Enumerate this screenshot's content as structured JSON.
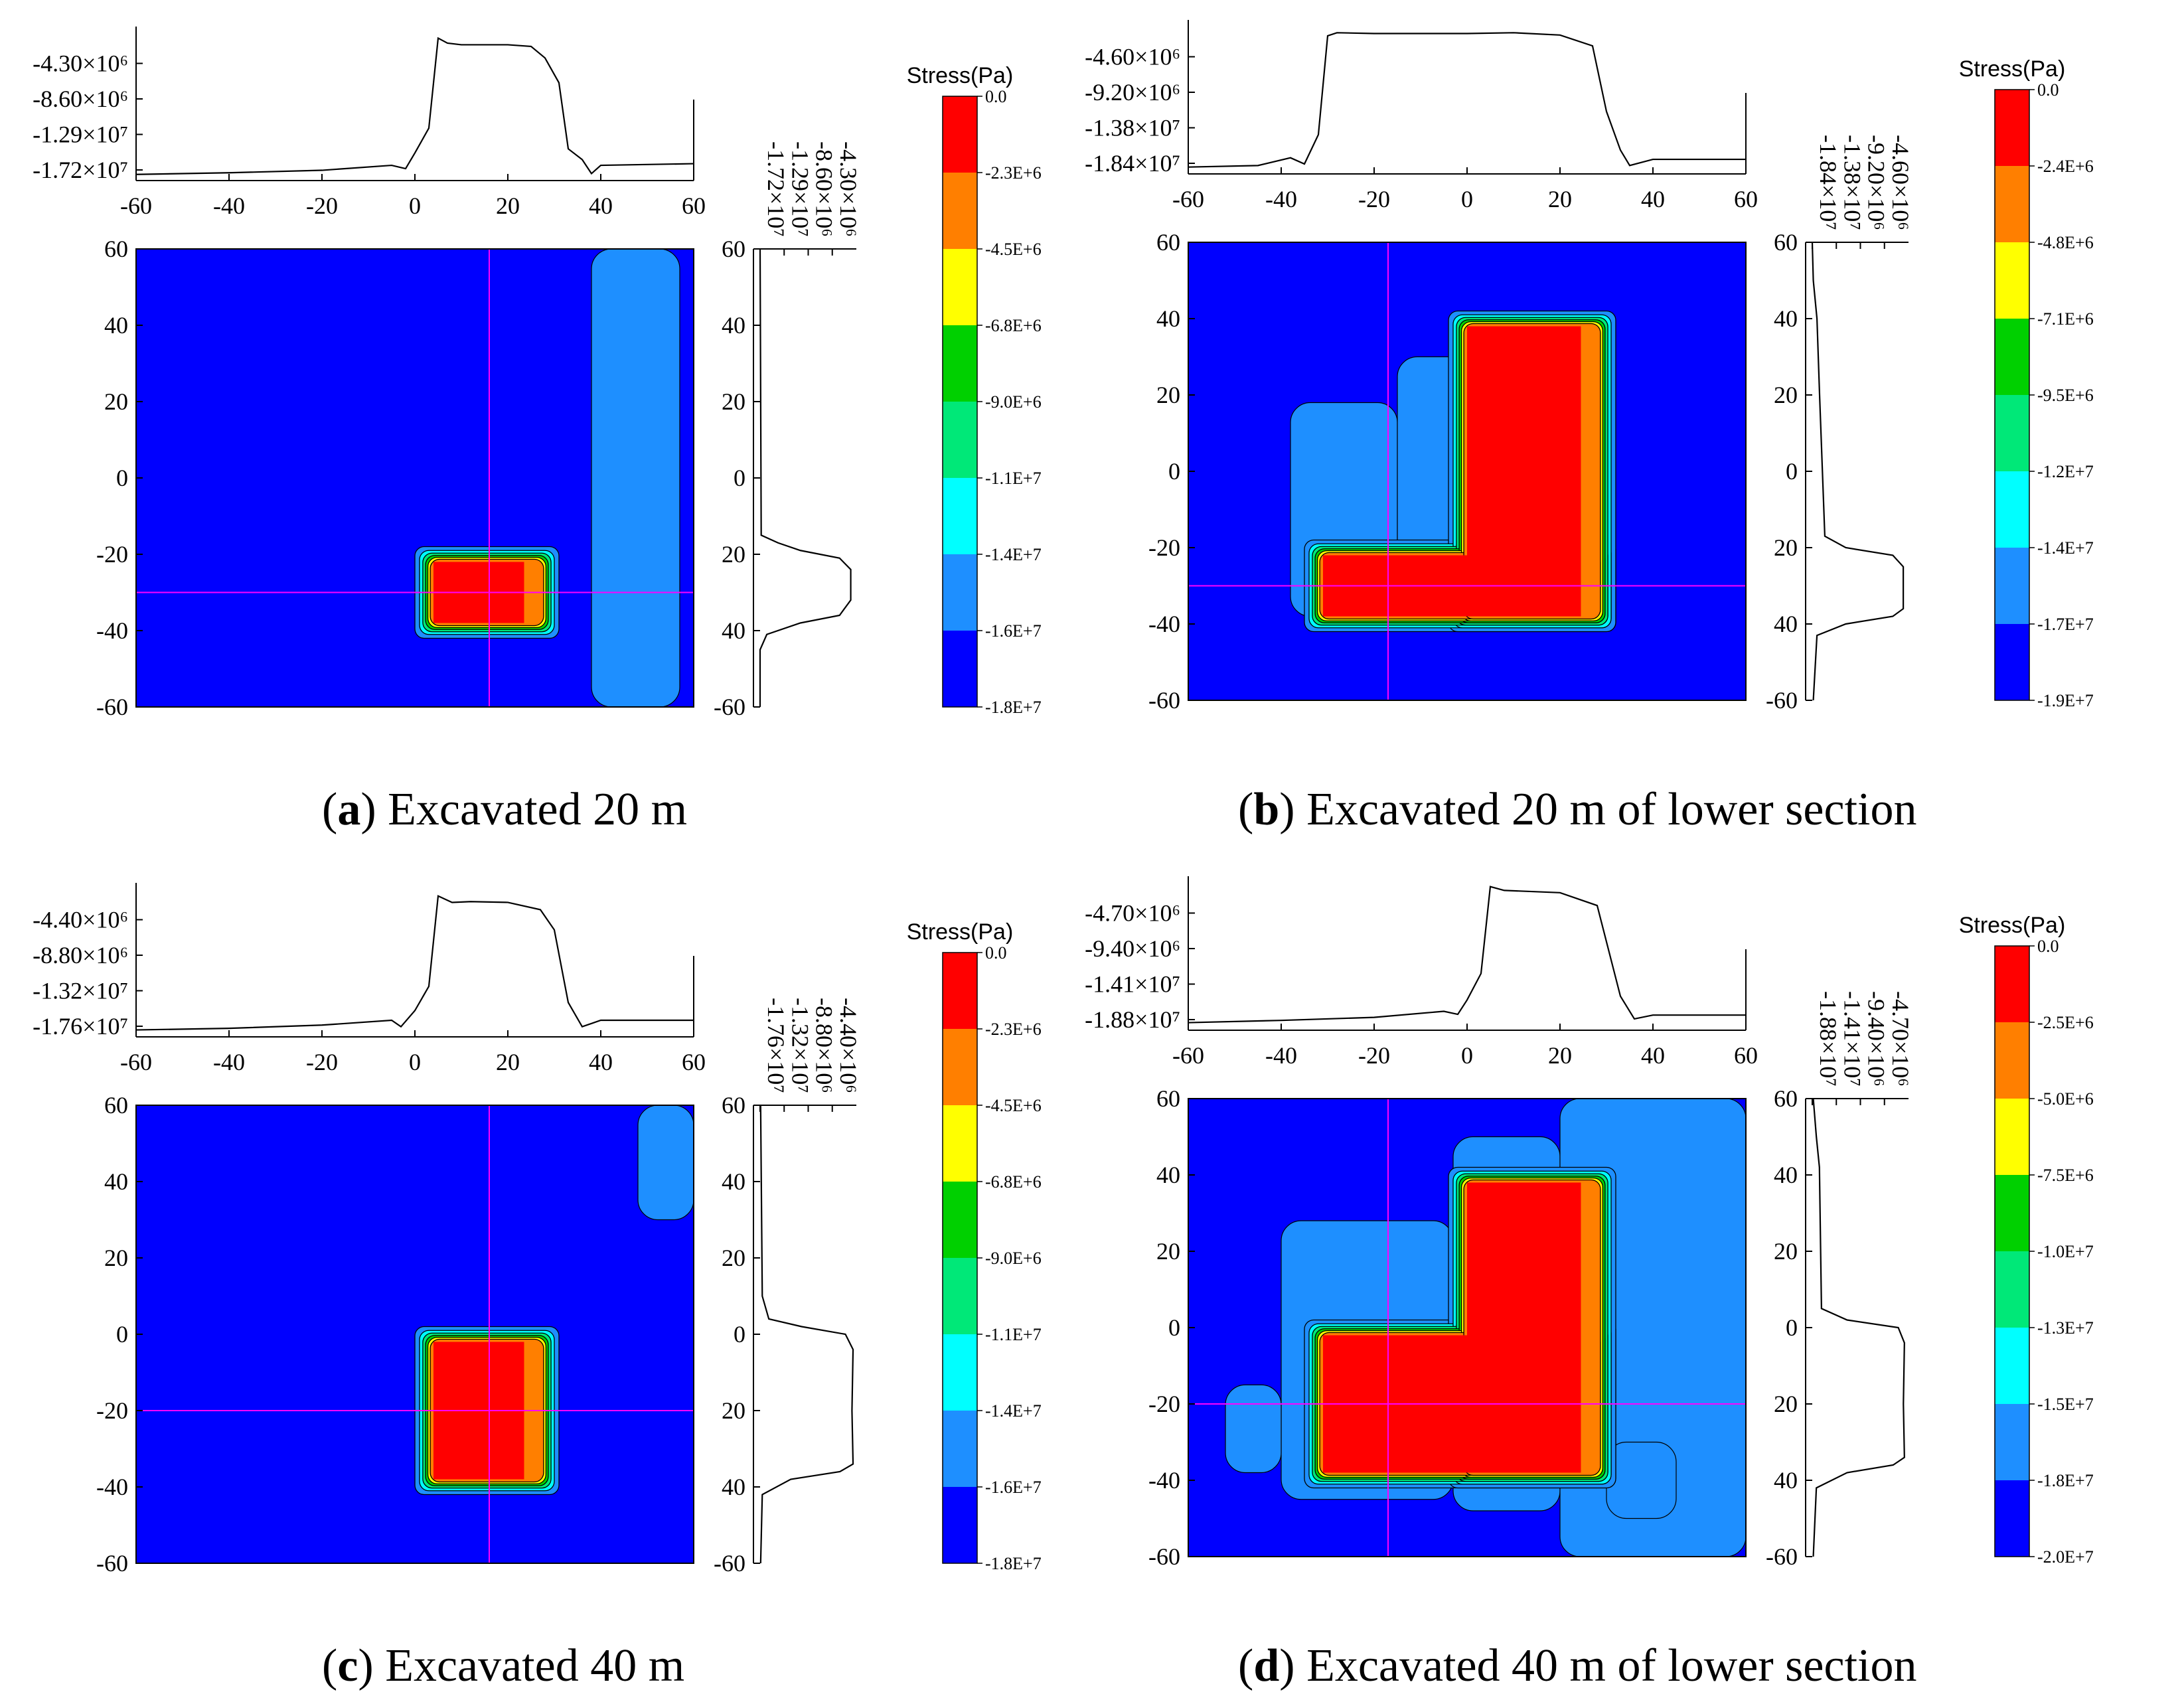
{
  "colors": {
    "bands": [
      "#ff0000",
      "#ff7f00",
      "#ffff00",
      "#00d000",
      "#00e878",
      "#00ffff",
      "#1e8fff",
      "#0000ff"
    ],
    "profile_line": "#000000",
    "crosshair": "#ff00ff"
  },
  "chart_data": [
    {
      "type": "contour",
      "panel_letter": "a",
      "caption": "Excavated 20 m",
      "colorbar_title": "Stress(Pa)",
      "colorbar_labels": [
        "0.0",
        "-2.3E+6",
        "-4.5E+6",
        "-6.8E+6",
        "-9.0E+6",
        "-1.1E+7",
        "-1.4E+7",
        "-1.6E+7",
        "-1.8E+7"
      ],
      "x_ticks": [
        "-60",
        "-40",
        "-20",
        "0",
        "20",
        "40",
        "60"
      ],
      "y_ticks": [
        "60",
        "40",
        "20",
        "0",
        "-20",
        "-40",
        "-60"
      ],
      "side_y_ticks": [
        "60",
        "40",
        "20",
        "0",
        "20",
        "40",
        "-60"
      ],
      "top_profile_ticks": [
        "-4.30×10⁶",
        "-8.60×10⁶",
        "-1.29×10⁷",
        "-1.72×10⁷"
      ],
      "side_profile_ticks": [
        "-1.72×10⁷",
        "-1.29×10⁷",
        "-8.60×10⁶",
        "-4.30×10⁶"
      ],
      "xlim": [
        -60,
        60
      ],
      "ylim": [
        -60,
        60
      ],
      "crosshair": {
        "x": 16,
        "y": -30
      },
      "excavation_rects": [
        [
          4,
          27,
          -38,
          -22
        ]
      ],
      "side_high_zones": [
        [
          38,
          57,
          -60,
          60
        ]
      ],
      "top_profile": [
        [
          -60,
          -17100000.0
        ],
        [
          -40,
          -16900000.0
        ],
        [
          -20,
          -16600000.0
        ],
        [
          -5,
          -16000000.0
        ],
        [
          -2,
          -16400000.0
        ],
        [
          0,
          -14500000.0
        ],
        [
          3,
          -11500000.0
        ],
        [
          5,
          -600000.0
        ],
        [
          7,
          -1200000.0
        ],
        [
          10,
          -1400000.0
        ],
        [
          20,
          -1400000.0
        ],
        [
          25,
          -1600000.0
        ],
        [
          28,
          -3000000.0
        ],
        [
          31,
          -6000000.0
        ],
        [
          33,
          -14000000.0
        ],
        [
          36,
          -15300000.0
        ],
        [
          38,
          -17000000.0
        ],
        [
          40,
          -16000000.0
        ],
        [
          60,
          -15800000.0
        ]
      ],
      "side_profile": [
        [
          60,
          -17200000.0
        ],
        [
          -15,
          -17000000.0
        ],
        [
          -17,
          -14000000.0
        ],
        [
          -19,
          -10000000.0
        ],
        [
          -21,
          -3000000.0
        ],
        [
          -24,
          -1000000.0
        ],
        [
          -32,
          -1000000.0
        ],
        [
          -36,
          -3000000.0
        ],
        [
          -38,
          -10000000.0
        ],
        [
          -41,
          -16000000.0
        ],
        [
          -45,
          -17200000.0
        ],
        [
          -60,
          -17200000.0
        ]
      ]
    },
    {
      "type": "contour",
      "panel_letter": "b",
      "caption": "Excavated 20 m of lower section",
      "colorbar_title": "Stress(Pa)",
      "colorbar_labels": [
        "0.0",
        "-2.4E+6",
        "-4.8E+6",
        "-7.1E+6",
        "-9.5E+6",
        "-1.2E+7",
        "-1.4E+7",
        "-1.7E+7",
        "-1.9E+7"
      ],
      "x_ticks": [
        "-60",
        "-40",
        "-20",
        "0",
        "20",
        "40",
        "60"
      ],
      "y_ticks": [
        "60",
        "40",
        "20",
        "0",
        "-20",
        "-40",
        "-60"
      ],
      "side_y_ticks": [
        "60",
        "40",
        "20",
        "0",
        "20",
        "40",
        "-60"
      ],
      "top_profile_ticks": [
        "-4.60×10⁶",
        "-9.20×10⁶",
        "-1.38×10⁷",
        "-1.84×10⁷"
      ],
      "side_profile_ticks": [
        "-1.84×10⁷",
        "-1.38×10⁷",
        "-9.20×10⁶",
        "-4.60×10⁶"
      ],
      "xlim": [
        -60,
        60
      ],
      "ylim": [
        -60,
        60
      ],
      "crosshair": {
        "x": -17,
        "y": -30
      },
      "excavation_rects": [
        [
          -31,
          28,
          -38,
          -22
        ],
        [
          0,
          28,
          -38,
          38
        ]
      ],
      "side_high_zones": [
        [
          -38,
          -15,
          -38,
          18
        ],
        [
          -15,
          0,
          -38,
          30
        ]
      ],
      "top_profile": [
        [
          -60,
          -18200000.0
        ],
        [
          -45,
          -18000000.0
        ],
        [
          -38,
          -17000000.0
        ],
        [
          -35,
          -17800000.0
        ],
        [
          -32,
          -14000000.0
        ],
        [
          -30,
          -1200000.0
        ],
        [
          -28,
          -800000.0
        ],
        [
          -20,
          -900000.0
        ],
        [
          0,
          -900000.0
        ],
        [
          10,
          -800000.0
        ],
        [
          20,
          -1100000.0
        ],
        [
          27,
          -2500000.0
        ],
        [
          30,
          -11000000.0
        ],
        [
          33,
          -16000000.0
        ],
        [
          35,
          -18000000.0
        ],
        [
          40,
          -17200000.0
        ],
        [
          60,
          -17200000.0
        ]
      ],
      "side_profile": [
        [
          60,
          -18400000.0
        ],
        [
          50,
          -18200000.0
        ],
        [
          40,
          -17500000.0
        ],
        [
          20,
          -17000000.0
        ],
        [
          -17,
          -16000000.0
        ],
        [
          -20,
          -12000000.0
        ],
        [
          -22,
          -3000000.0
        ],
        [
          -25,
          -1000000.0
        ],
        [
          -36,
          -1000000.0
        ],
        [
          -38,
          -3000000.0
        ],
        [
          -40,
          -12000000.0
        ],
        [
          -43,
          -17500000.0
        ],
        [
          -60,
          -18200000.0
        ]
      ]
    },
    {
      "type": "contour",
      "panel_letter": "c",
      "caption": "Excavated 40 m",
      "colorbar_title": "Stress(Pa)",
      "colorbar_labels": [
        "0.0",
        "-2.3E+6",
        "-4.5E+6",
        "-6.8E+6",
        "-9.0E+6",
        "-1.1E+7",
        "-1.4E+7",
        "-1.6E+7",
        "-1.8E+7"
      ],
      "x_ticks": [
        "-60",
        "-40",
        "-20",
        "0",
        "20",
        "40",
        "60"
      ],
      "y_ticks": [
        "60",
        "40",
        "20",
        "0",
        "-20",
        "-40",
        "-60"
      ],
      "side_y_ticks": [
        "60",
        "40",
        "20",
        "0",
        "20",
        "40",
        "-60"
      ],
      "top_profile_ticks": [
        "-4.40×10⁶",
        "-8.80×10⁶",
        "-1.32×10⁷",
        "-1.76×10⁷"
      ],
      "side_profile_ticks": [
        "-1.76×10⁷",
        "-1.32×10⁷",
        "-8.80×10⁶",
        "-4.40×10⁶"
      ],
      "xlim": [
        -60,
        60
      ],
      "ylim": [
        -60,
        60
      ],
      "crosshair": {
        "x": 16,
        "y": -20
      },
      "excavation_rects": [
        [
          4,
          27,
          -38,
          -2
        ]
      ],
      "side_high_zones": [
        [
          48,
          60,
          30,
          60
        ]
      ],
      "top_profile": [
        [
          -60,
          -17400000.0
        ],
        [
          -40,
          -17200000.0
        ],
        [
          -20,
          -16800000.0
        ],
        [
          -5,
          -16200000.0
        ],
        [
          -3,
          -17000000.0
        ],
        [
          0,
          -15000000.0
        ],
        [
          3,
          -12000000.0
        ],
        [
          5,
          -800000.0
        ],
        [
          8,
          -1600000.0
        ],
        [
          12,
          -1500000.0
        ],
        [
          20,
          -1600000.0
        ],
        [
          27,
          -2500000.0
        ],
        [
          30,
          -5000000.0
        ],
        [
          33,
          -14000000.0
        ],
        [
          36,
          -17000000.0
        ],
        [
          40,
          -16200000.0
        ],
        [
          60,
          -16200000.0
        ]
      ],
      "side_profile": [
        [
          60,
          -17500000.0
        ],
        [
          10,
          -17200000.0
        ],
        [
          4,
          -16000000.0
        ],
        [
          2,
          -10000000.0
        ],
        [
          0,
          -2000000.0
        ],
        [
          -4,
          -600000.0
        ],
        [
          -20,
          -800000.0
        ],
        [
          -34,
          -600000.0
        ],
        [
          -36,
          -3000000.0
        ],
        [
          -38,
          -12000000.0
        ],
        [
          -42,
          -17200000.0
        ],
        [
          -60,
          -17500000.0
        ]
      ]
    },
    {
      "type": "contour",
      "panel_letter": "d",
      "caption": "Excavated 40 m of lower section",
      "colorbar_title": "Stress(Pa)",
      "colorbar_labels": [
        "0.0",
        "-2.5E+6",
        "-5.0E+6",
        "-7.5E+6",
        "-1.0E+7",
        "-1.3E+7",
        "-1.5E+7",
        "-1.8E+7",
        "-2.0E+7"
      ],
      "x_ticks": [
        "-60",
        "-40",
        "-20",
        "0",
        "20",
        "40",
        "60"
      ],
      "y_ticks": [
        "60",
        "40",
        "20",
        "0",
        "-20",
        "-40",
        "-60"
      ],
      "side_y_ticks": [
        "60",
        "40",
        "20",
        "0",
        "20",
        "40",
        "-60"
      ],
      "top_profile_ticks": [
        "-4.70×10⁶",
        "-9.40×10⁶",
        "-1.41×10⁷",
        "-1.88×10⁷"
      ],
      "side_profile_ticks": [
        "-1.88×10⁷",
        "-1.41×10⁷",
        "-9.40×10⁶",
        "-4.70×10⁶"
      ],
      "xlim": [
        -60,
        60
      ],
      "ylim": [
        -60,
        60
      ],
      "crosshair": {
        "x": -17,
        "y": -20
      },
      "excavation_rects": [
        [
          -31,
          28,
          -38,
          -2
        ],
        [
          0,
          28,
          -38,
          38
        ]
      ],
      "side_high_zones": [
        [
          -40,
          -3,
          -45,
          28
        ],
        [
          -3,
          20,
          -48,
          50
        ],
        [
          20,
          60,
          -60,
          60
        ],
        [
          -52,
          -40,
          -38,
          -15
        ],
        [
          30,
          45,
          -50,
          -30
        ]
      ],
      "top_profile": [
        [
          -60,
          -18500000.0
        ],
        [
          -40,
          -18200000.0
        ],
        [
          -20,
          -17800000.0
        ],
        [
          -5,
          -17000000.0
        ],
        [
          -2,
          -17400000.0
        ],
        [
          0,
          -15500000.0
        ],
        [
          3,
          -12000000.0
        ],
        [
          5,
          -500000.0
        ],
        [
          8,
          -1000000.0
        ],
        [
          20,
          -1300000.0
        ],
        [
          28,
          -3000000.0
        ],
        [
          33,
          -15000000.0
        ],
        [
          36,
          -18000000.0
        ],
        [
          40,
          -17500000.0
        ],
        [
          60,
          -17500000.0
        ]
      ],
      "side_profile": [
        [
          60,
          -18600000.0
        ],
        [
          50,
          -18000000.0
        ],
        [
          42,
          -17400000.0
        ],
        [
          5,
          -17000000.0
        ],
        [
          2,
          -12000000.0
        ],
        [
          0,
          -2000000.0
        ],
        [
          -4,
          -800000.0
        ],
        [
          -20,
          -1000000.0
        ],
        [
          -34,
          -800000.0
        ],
        [
          -36,
          -3000000.0
        ],
        [
          -38,
          -12000000.0
        ],
        [
          -42,
          -18000000.0
        ],
        [
          -60,
          -18600000.0
        ]
      ]
    }
  ]
}
